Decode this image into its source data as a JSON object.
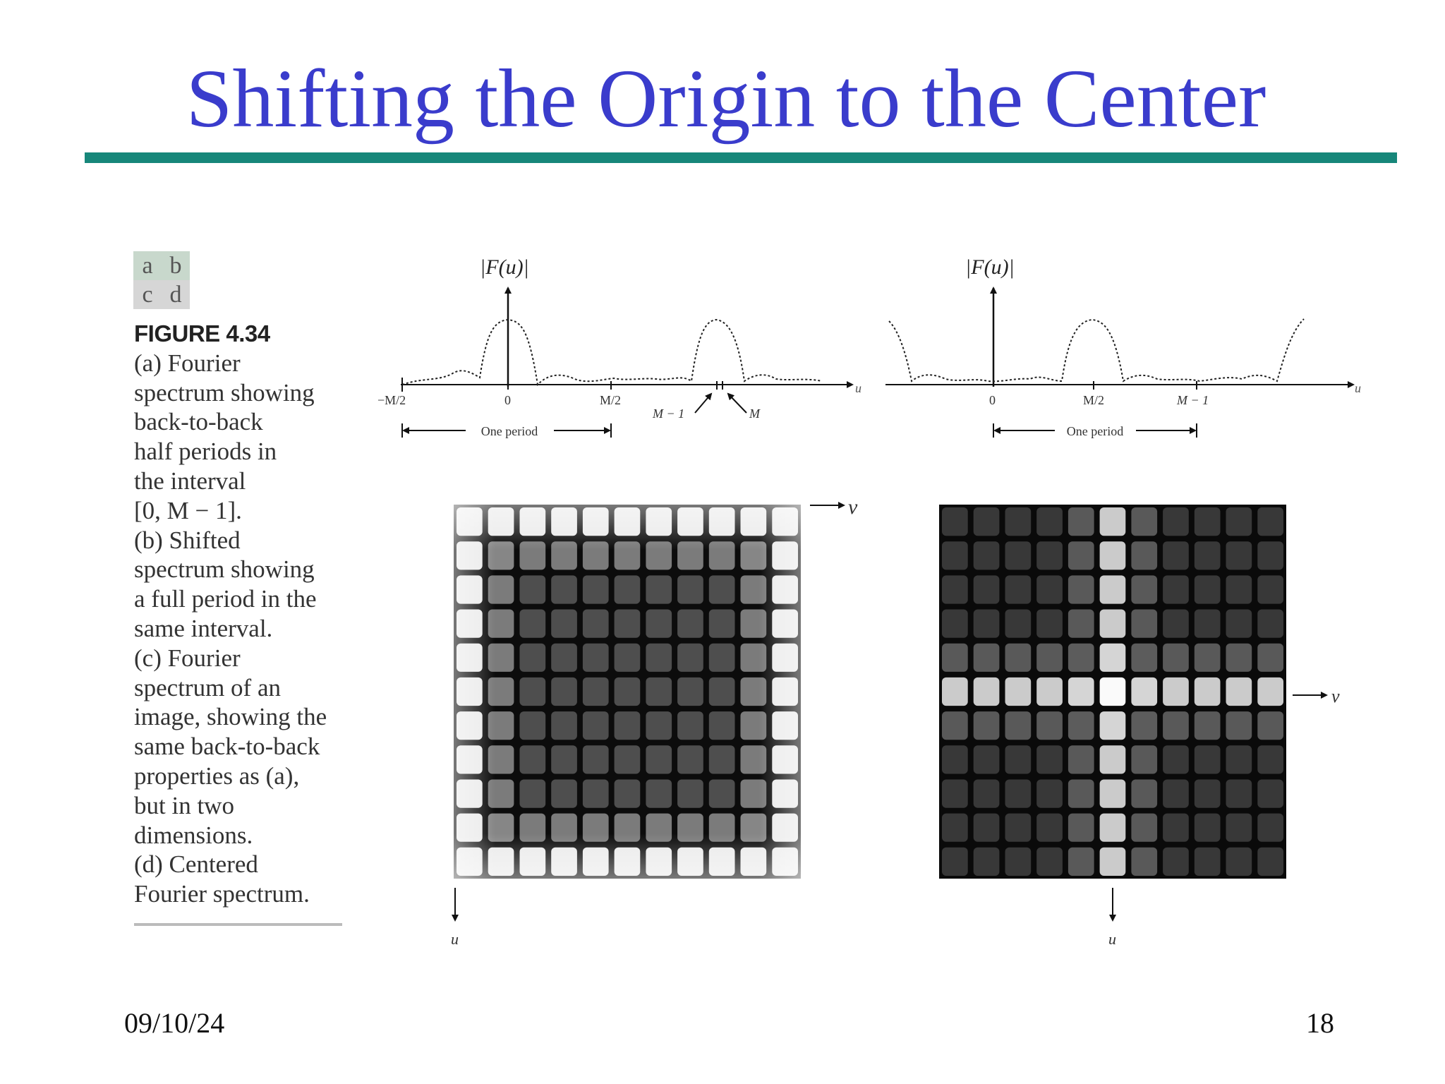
{
  "slide": {
    "title": "Shifting the Origin to the Center",
    "date": "09/10/24",
    "page_number": "18"
  },
  "figure": {
    "panel_labels": [
      "a",
      "b",
      "c",
      "d"
    ],
    "caption_title": "FIGURE 4.34",
    "caption_lines": [
      "(a) Fourier",
      "spectrum showing",
      "back-to-back",
      "half periods in",
      "the interval",
      "[0, M − 1].",
      "(b) Shifted",
      "spectrum showing",
      "a full period in the",
      "same interval.",
      "(c) Fourier",
      "spectrum of an",
      "image, showing the",
      "same back-to-back",
      "properties as (a),",
      "but in two",
      "dimensions.",
      "(d) Centered",
      "Fourier spectrum."
    ],
    "plot_a": {
      "y_label": "|F(u)|",
      "x_axis_label": "u",
      "tick_labels": [
        "−M/2",
        "0",
        "M/2"
      ],
      "marker_labels": [
        "M − 1",
        "M"
      ],
      "period_label": "One period"
    },
    "plot_b": {
      "y_label": "|F(u)|",
      "x_axis_label": "u",
      "tick_labels": [
        "0",
        "M/2",
        "M − 1"
      ],
      "period_label": "One period"
    },
    "image_c": {
      "u_label": "u",
      "v_label": "v"
    },
    "image_d": {
      "u_label": "u",
      "v_label": "v"
    }
  }
}
